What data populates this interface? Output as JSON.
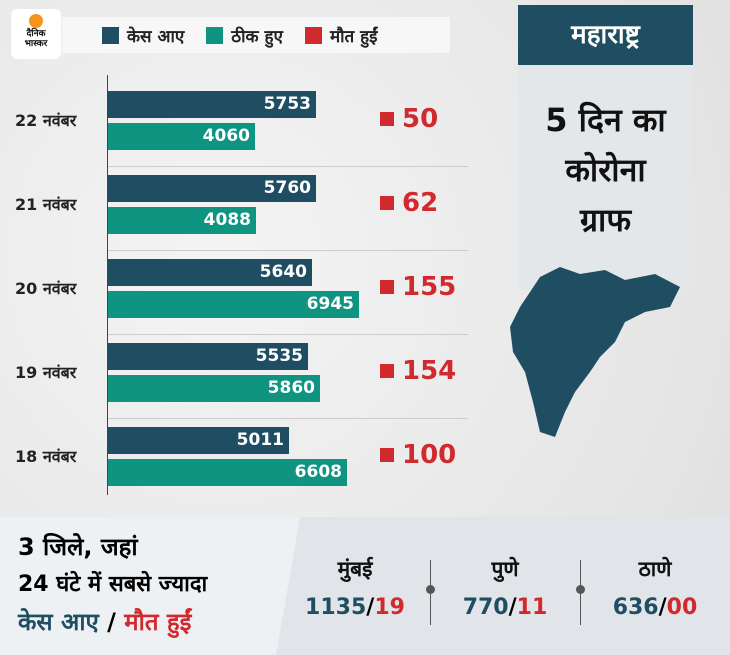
{
  "logo": {
    "line1": "दैनिक",
    "line2": "भास्कर"
  },
  "legend": [
    {
      "label": "केस आए",
      "color": "#1f4e63"
    },
    {
      "label": "ठीक हुए",
      "color": "#0e9480"
    },
    {
      "label": "मौत हुईं",
      "color": "#d12a2e"
    }
  ],
  "chart_data": {
    "type": "bar",
    "categories": [
      "22 नवंबर",
      "21 नवंबर",
      "20 नवंबर",
      "19 नवंबर",
      "18 नवंबर"
    ],
    "series": [
      {
        "name": "केस आए",
        "values": [
          5753,
          5760,
          5640,
          5535,
          5011
        ]
      },
      {
        "name": "ठीक हुए",
        "values": [
          4060,
          4088,
          6945,
          5860,
          6608
        ]
      },
      {
        "name": "मौत हुईं",
        "values": [
          50,
          62,
          155,
          154,
          100
        ]
      }
    ]
  },
  "panel": {
    "state": "महाराष्ट्र",
    "title_lines": [
      "5 दिन का",
      "कोरोना",
      "ग्राफ"
    ]
  },
  "bottom": {
    "line1": "3 जिले, जहां",
    "line2": "24 घंटे में सबसे ज्यादा",
    "line3a": "केस आए",
    "slash": " / ",
    "line3b": "मौत हुईं",
    "cities": [
      {
        "name": "मुंबई",
        "cases": "1135",
        "deaths": "19"
      },
      {
        "name": "पुणे",
        "cases": "770",
        "deaths": "11"
      },
      {
        "name": "ठाणे",
        "cases": "636",
        "deaths": "00"
      }
    ]
  }
}
